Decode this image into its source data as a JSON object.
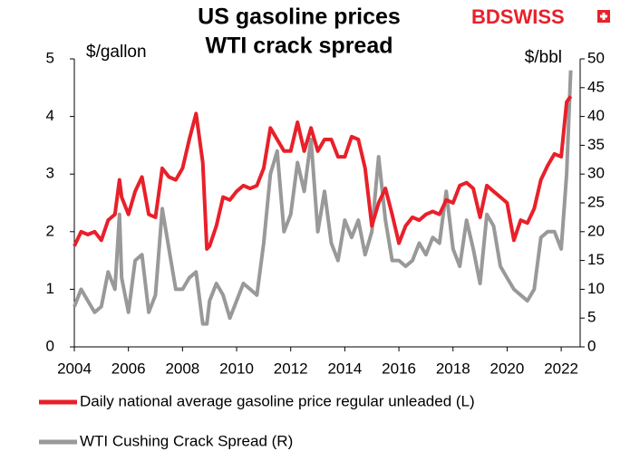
{
  "chart_data": {
    "type": "line",
    "title": [
      "US gasoline prices",
      "WTI crack spread"
    ],
    "ylabel": "$/gallon",
    "y2label": "$/bbl",
    "logo": "BDSWISS",
    "x": [
      2004.0,
      2004.25,
      2004.5,
      2004.75,
      2005.0,
      2005.25,
      2005.5,
      2005.67,
      2005.75,
      2006.0,
      2006.25,
      2006.5,
      2006.75,
      2007.0,
      2007.25,
      2007.5,
      2007.75,
      2008.0,
      2008.25,
      2008.5,
      2008.75,
      2008.9,
      2009.0,
      2009.25,
      2009.5,
      2009.75,
      2010.0,
      2010.25,
      2010.5,
      2010.75,
      2011.0,
      2011.25,
      2011.5,
      2011.75,
      2012.0,
      2012.25,
      2012.5,
      2012.75,
      2013.0,
      2013.25,
      2013.5,
      2013.75,
      2014.0,
      2014.25,
      2014.5,
      2014.75,
      2015.0,
      2015.25,
      2015.5,
      2015.75,
      2016.0,
      2016.25,
      2016.5,
      2016.75,
      2017.0,
      2017.25,
      2017.5,
      2017.75,
      2018.0,
      2018.25,
      2018.5,
      2018.75,
      2019.0,
      2019.25,
      2019.5,
      2019.75,
      2020.0,
      2020.25,
      2020.5,
      2020.75,
      2021.0,
      2021.25,
      2021.5,
      2021.75,
      2022.0,
      2022.2,
      2022.35
    ],
    "series": [
      {
        "name": "Daily national average gasoline price regular unleaded (L)",
        "color": "#e8202a",
        "axis": "y",
        "values": [
          1.75,
          2.0,
          1.95,
          2.0,
          1.85,
          2.2,
          2.3,
          2.9,
          2.6,
          2.3,
          2.7,
          2.95,
          2.3,
          2.25,
          3.1,
          2.95,
          2.9,
          3.1,
          3.6,
          4.05,
          3.2,
          1.7,
          1.75,
          2.1,
          2.6,
          2.55,
          2.7,
          2.8,
          2.75,
          2.8,
          3.1,
          3.8,
          3.6,
          3.4,
          3.4,
          3.9,
          3.4,
          3.8,
          3.4,
          3.6,
          3.6,
          3.3,
          3.3,
          3.65,
          3.6,
          3.1,
          2.1,
          2.5,
          2.75,
          2.3,
          1.8,
          2.1,
          2.25,
          2.2,
          2.3,
          2.35,
          2.3,
          2.55,
          2.5,
          2.8,
          2.85,
          2.75,
          2.25,
          2.8,
          2.7,
          2.6,
          2.5,
          1.85,
          2.2,
          2.15,
          2.4,
          2.9,
          3.15,
          3.35,
          3.3,
          4.25,
          4.35
        ]
      },
      {
        "name": "WTI Cushing Crack Spread (R)",
        "color": "#999999",
        "axis": "y2",
        "values": [
          7,
          10,
          8,
          6,
          7,
          13,
          10,
          23,
          12,
          6,
          15,
          16,
          6,
          9,
          24,
          17,
          10,
          10,
          12,
          13,
          4,
          4,
          8,
          11,
          9,
          5,
          8,
          11,
          10,
          9,
          18,
          30,
          34,
          20,
          23,
          32,
          27,
          36,
          20,
          27,
          18,
          15,
          22,
          19,
          22,
          16,
          20,
          33,
          22,
          15,
          15,
          14,
          15,
          18,
          16,
          19,
          18,
          27,
          17,
          14,
          22,
          17,
          11,
          23,
          21,
          14,
          12,
          10,
          9,
          8,
          10,
          19,
          20,
          20,
          17,
          30,
          48
        ]
      }
    ],
    "xlim": [
      2004,
      2022.7
    ],
    "xticks": [
      2004,
      2006,
      2008,
      2010,
      2012,
      2014,
      2016,
      2018,
      2020,
      2022
    ],
    "ylim": [
      0,
      5
    ],
    "yticks": [
      0,
      1,
      2,
      3,
      4,
      5
    ],
    "y2lim": [
      0,
      50
    ],
    "y2ticks": [
      0,
      5,
      10,
      15,
      20,
      25,
      30,
      35,
      40,
      45,
      50
    ],
    "grid": false
  }
}
